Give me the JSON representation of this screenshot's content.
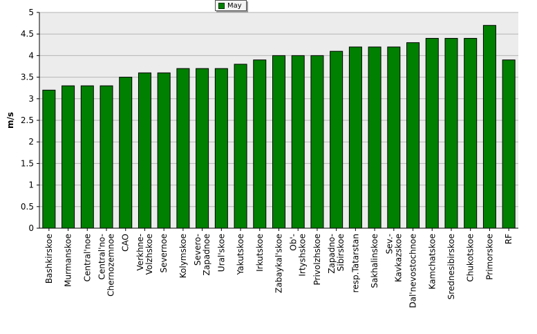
{
  "chart_data": {
    "type": "bar",
    "title": "",
    "xlabel": "",
    "ylabel": "m/s",
    "ylim": [
      0,
      5
    ],
    "yticks": [
      "0",
      "0.5",
      "1",
      "1.5",
      "2",
      "2.5",
      "3",
      "3.5",
      "4",
      "4.5",
      "5"
    ],
    "grid": true,
    "legend_position": "top-center",
    "bar_color": "#008000",
    "plot_background": "#ececec",
    "categories": [
      "Bashkirskoe",
      "Murmanskoe",
      "Central'noe",
      "Central'no-Chernozemnoe",
      "CAO",
      "Verkhne-Volzhskoe",
      "Severnoe",
      "Kolymskoe",
      "Severo-Zapadnoe",
      "Ural'skoe",
      "Yakutskoe",
      "Irkutskoe",
      "Zabaykal'skoe",
      "Ob'-Irtyshskoe",
      "Privolzhskoe",
      "Zapadno-Sibirskoe",
      "resp.Tatarstan",
      "Sakhalinskoe",
      "Sev.-Kavkazskoe",
      "Dal'nevostochnoe",
      "Kamchatskoe",
      "Srednesibirskoe",
      "Chukotskoe",
      "Primorskoe",
      "RF"
    ],
    "series": [
      {
        "name": "May",
        "values": [
          3.2,
          3.3,
          3.3,
          3.3,
          3.5,
          3.6,
          3.6,
          3.7,
          3.7,
          3.7,
          3.8,
          3.9,
          4.0,
          4.0,
          4.0,
          4.1,
          4.2,
          4.2,
          4.2,
          4.3,
          4.4,
          4.4,
          4.4,
          4.7,
          3.9
        ]
      }
    ]
  }
}
